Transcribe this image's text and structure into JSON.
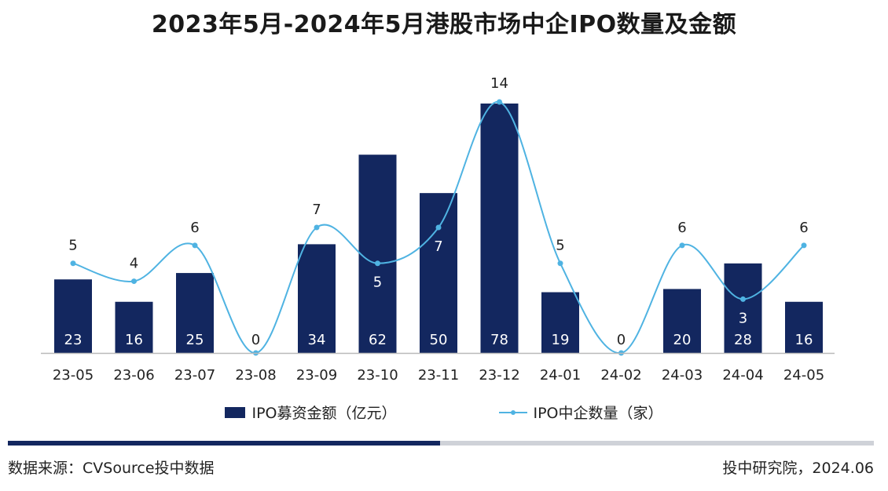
{
  "chart_data": {
    "type": "bar",
    "title": "2023年5月-2024年5月港股市场中企IPO数量及金额",
    "categories": [
      "23-05",
      "23-06",
      "23-07",
      "23-08",
      "23-09",
      "23-10",
      "23-11",
      "23-12",
      "24-01",
      "24-02",
      "24-03",
      "24-04",
      "24-05"
    ],
    "series": [
      {
        "name": "IPO募资金额（亿元）",
        "type": "bar",
        "color": "#13275f",
        "values": [
          23,
          16,
          25,
          0,
          34,
          62,
          50,
          78,
          19,
          0,
          20,
          28,
          16
        ]
      },
      {
        "name": "IPO中企数量（家）",
        "type": "line",
        "color": "#4fb3e2",
        "values": [
          5,
          4,
          6,
          0,
          7,
          5,
          7,
          14,
          5,
          0,
          6,
          3,
          6
        ]
      }
    ],
    "bar_ylim": [
      0,
      78
    ],
    "line_ylim": [
      0,
      14
    ],
    "legend_position": "bottom"
  },
  "footer": {
    "source": "数据来源：CVSource投中数据",
    "credit": "投中研究院，2024.06"
  }
}
